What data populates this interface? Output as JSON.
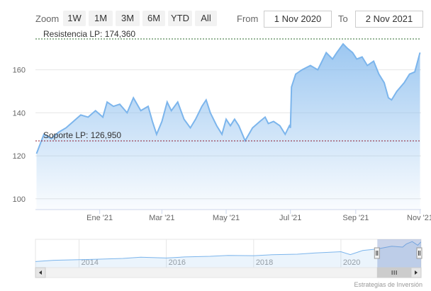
{
  "range_selector": {
    "zoom_label": "Zoom",
    "buttons": [
      "1W",
      "1M",
      "3M",
      "6M",
      "YTD",
      "All"
    ],
    "from_label": "From",
    "from_value": "1 Nov 2020",
    "to_label": "To",
    "to_value": "2 Nov 2021"
  },
  "credits": "Estrategias de Inversión",
  "colors": {
    "series_line": "#7cb5ec",
    "resistance_line": "#2d6b2d",
    "support_line": "#8b1a2b",
    "grid": "#e6e6e6",
    "navigator_mask": "#6685c2"
  },
  "chart_data": {
    "type": "area",
    "series": [
      {
        "points": [
          [
            "2020-11-02",
            121
          ],
          [
            "2020-11-09",
            130
          ],
          [
            "2020-11-16",
            128
          ],
          [
            "2020-11-23",
            131
          ],
          [
            "2020-11-30",
            133
          ],
          [
            "2020-12-07",
            136
          ],
          [
            "2020-12-14",
            139
          ],
          [
            "2020-12-21",
            138
          ],
          [
            "2020-12-28",
            141
          ],
          [
            "2021-01-04",
            138
          ],
          [
            "2021-01-08",
            145
          ],
          [
            "2021-01-14",
            143
          ],
          [
            "2021-01-20",
            144
          ],
          [
            "2021-01-27",
            140
          ],
          [
            "2021-02-02",
            147
          ],
          [
            "2021-02-09",
            141
          ],
          [
            "2021-02-16",
            143
          ],
          [
            "2021-02-20",
            136
          ],
          [
            "2021-02-24",
            130
          ],
          [
            "2021-03-01",
            136
          ],
          [
            "2021-03-06",
            145
          ],
          [
            "2021-03-10",
            141
          ],
          [
            "2021-03-16",
            145
          ],
          [
            "2021-03-22",
            137
          ],
          [
            "2021-03-28",
            133
          ],
          [
            "2021-04-02",
            137
          ],
          [
            "2021-04-08",
            143
          ],
          [
            "2021-04-12",
            146
          ],
          [
            "2021-04-16",
            140
          ],
          [
            "2021-04-22",
            134
          ],
          [
            "2021-04-27",
            130
          ],
          [
            "2021-05-01",
            137
          ],
          [
            "2021-05-05",
            134
          ],
          [
            "2021-05-09",
            137
          ],
          [
            "2021-05-13",
            134
          ],
          [
            "2021-05-19",
            127
          ],
          [
            "2021-05-26",
            133
          ],
          [
            "2021-06-02",
            136
          ],
          [
            "2021-06-07",
            138
          ],
          [
            "2021-06-10",
            135
          ],
          [
            "2021-06-15",
            136
          ],
          [
            "2021-06-21",
            134
          ],
          [
            "2021-06-26",
            130
          ],
          [
            "2021-06-30",
            134
          ],
          [
            "2021-07-01",
            133
          ],
          [
            "2021-07-02",
            152
          ],
          [
            "2021-07-06",
            158
          ],
          [
            "2021-07-12",
            160
          ],
          [
            "2021-07-20",
            162
          ],
          [
            "2021-07-27",
            160
          ],
          [
            "2021-07-31",
            164
          ],
          [
            "2021-08-04",
            168
          ],
          [
            "2021-08-10",
            165
          ],
          [
            "2021-08-14",
            168
          ],
          [
            "2021-08-20",
            172
          ],
          [
            "2021-08-24",
            170
          ],
          [
            "2021-08-29",
            168
          ],
          [
            "2021-09-02",
            165
          ],
          [
            "2021-09-07",
            166
          ],
          [
            "2021-09-12",
            162
          ],
          [
            "2021-09-18",
            164
          ],
          [
            "2021-09-23",
            158
          ],
          [
            "2021-09-28",
            154
          ],
          [
            "2021-10-02",
            147
          ],
          [
            "2021-10-05",
            146
          ],
          [
            "2021-10-10",
            150
          ],
          [
            "2021-10-17",
            154
          ],
          [
            "2021-10-22",
            158
          ],
          [
            "2021-10-27",
            159
          ],
          [
            "2021-11-01",
            168
          ]
        ]
      }
    ],
    "plot_lines": [
      {
        "label": "Resistencia LP: 174,360",
        "value": 174.36
      },
      {
        "label": "Soporte LP: 126,950",
        "value": 126.95
      }
    ],
    "x_range": [
      "2020-11-01",
      "2021-11-02"
    ],
    "x_tick_labels": [
      {
        "date": "2021-01-01",
        "label": "Ene '21"
      },
      {
        "date": "2021-03-01",
        "label": "Mar '21"
      },
      {
        "date": "2021-05-01",
        "label": "May '21"
      },
      {
        "date": "2021-07-01",
        "label": "Jul '21"
      },
      {
        "date": "2021-09-01",
        "label": "Sep '21"
      },
      {
        "date": "2021-11-01",
        "label": "Nov '21"
      }
    ],
    "ylim": [
      95,
      176
    ],
    "y_ticks": [
      100,
      120,
      140,
      160
    ],
    "grid": true,
    "navigator": {
      "range": [
        "2013-01-01",
        "2021-11-02"
      ],
      "tick_labels": [
        {
          "date": "2014-01-01",
          "label": "2014"
        },
        {
          "date": "2016-01-01",
          "label": "2016"
        },
        {
          "date": "2018-01-01",
          "label": "2018"
        },
        {
          "date": "2020-01-01",
          "label": "2020"
        }
      ],
      "points": [
        [
          "2013-01-01",
          40
        ],
        [
          "2013-06-01",
          48
        ],
        [
          "2014-01-01",
          52
        ],
        [
          "2014-06-01",
          55
        ],
        [
          "2015-01-01",
          60
        ],
        [
          "2015-06-01",
          68
        ],
        [
          "2016-01-01",
          63
        ],
        [
          "2016-06-01",
          70
        ],
        [
          "2017-01-01",
          74
        ],
        [
          "2017-06-01",
          80
        ],
        [
          "2018-01-01",
          78
        ],
        [
          "2018-06-01",
          84
        ],
        [
          "2019-01-01",
          88
        ],
        [
          "2019-06-01",
          96
        ],
        [
          "2020-01-01",
          104
        ],
        [
          "2020-03-20",
          85
        ],
        [
          "2020-07-01",
          112
        ],
        [
          "2020-11-01",
          122
        ],
        [
          "2021-03-01",
          140
        ],
        [
          "2021-06-01",
          134
        ],
        [
          "2021-07-02",
          155
        ],
        [
          "2021-08-20",
          170
        ],
        [
          "2021-10-05",
          146
        ],
        [
          "2021-11-01",
          168
        ]
      ],
      "ylim": [
        0,
        185
      ],
      "selected": [
        "2020-11-01",
        "2021-11-02"
      ]
    }
  }
}
